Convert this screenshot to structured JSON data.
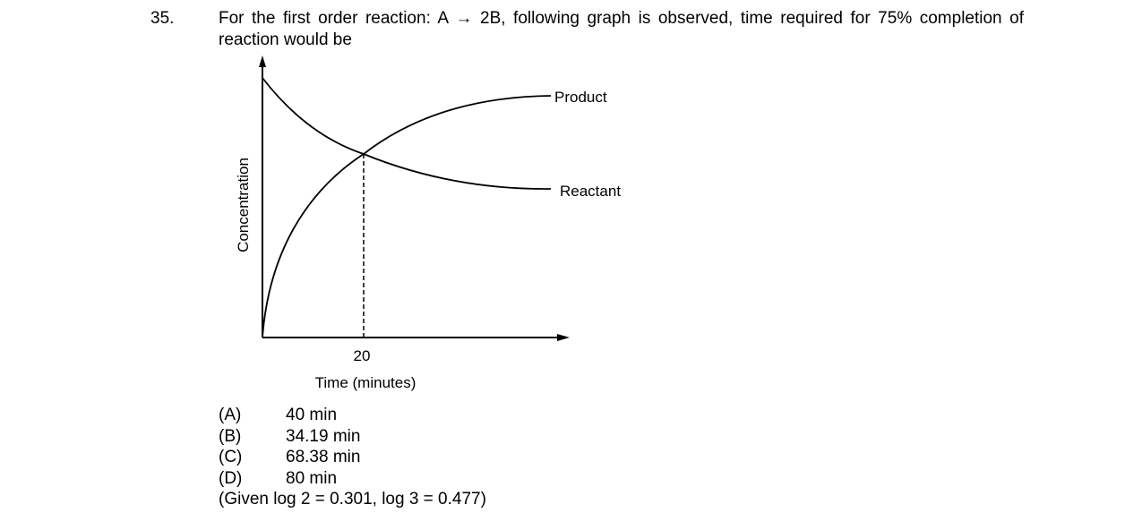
{
  "question": {
    "number": "35.",
    "text": "For the first order reaction: A → 2B, following graph is observed, time required for 75% completion of reaction would be"
  },
  "figure": {
    "y_axis_label": "Concentration",
    "x_axis_label": "Time (minutes)",
    "x_tick": "20",
    "curves": [
      "Product",
      "Reactant"
    ]
  },
  "options": [
    {
      "label": "(A)",
      "text": "40 min"
    },
    {
      "label": "(B)",
      "text": "34.19 min"
    },
    {
      "label": "(C)",
      "text": "68.38 min"
    },
    {
      "label": "(D)",
      "text": "80 min"
    }
  ],
  "given": "(Given log 2 = 0.301, log 3 = 0.477)"
}
